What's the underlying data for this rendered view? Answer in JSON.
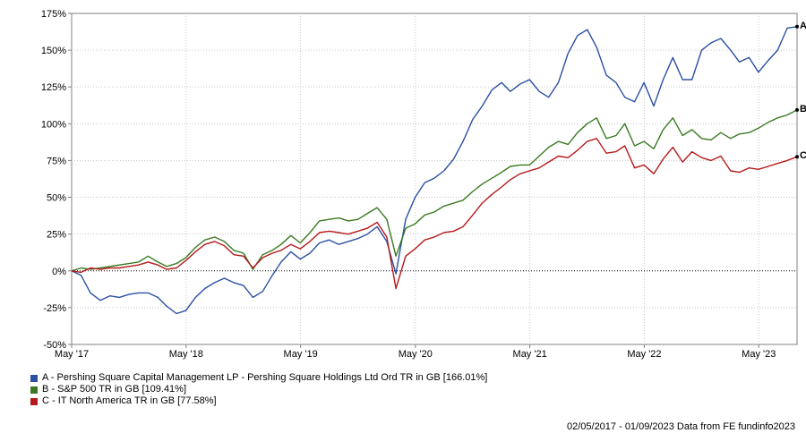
{
  "chart_data": {
    "type": "line",
    "x_tick_labels": [
      "May '17",
      "May '18",
      "May '19",
      "May '20",
      "May '21",
      "May '22",
      "May '23"
    ],
    "y_tick_labels": [
      "175%",
      "150%",
      "125%",
      "100%",
      "75%",
      "50%",
      "25%",
      "0%",
      "-25%",
      "-50%"
    ],
    "ylim": [
      -50,
      175
    ],
    "x_range": [
      "2017-05-02",
      "2023-09-01"
    ],
    "grid": true,
    "zero_line": true,
    "legend_position": "bottom-left",
    "series": [
      {
        "id": "A",
        "name": "A - Pershing Square Capital Management LP - Pershing Square Holdings Ltd Ord TR in GB [166.01%]",
        "color": "#2b4fa3",
        "points": [
          [
            "2017-05-02",
            0
          ],
          [
            "2017-06-01",
            -3
          ],
          [
            "2017-07-01",
            -15
          ],
          [
            "2017-08-01",
            -20
          ],
          [
            "2017-09-01",
            -17
          ],
          [
            "2017-10-01",
            -18
          ],
          [
            "2017-11-01",
            -16
          ],
          [
            "2017-12-01",
            -15
          ],
          [
            "2018-01-01",
            -15
          ],
          [
            "2018-02-01",
            -18
          ],
          [
            "2018-03-01",
            -24
          ],
          [
            "2018-04-01",
            -29
          ],
          [
            "2018-05-01",
            -27
          ],
          [
            "2018-06-01",
            -18
          ],
          [
            "2018-07-01",
            -12
          ],
          [
            "2018-08-01",
            -8
          ],
          [
            "2018-09-01",
            -5
          ],
          [
            "2018-10-01",
            -8
          ],
          [
            "2018-11-01",
            -10
          ],
          [
            "2018-12-01",
            -18
          ],
          [
            "2019-01-01",
            -14
          ],
          [
            "2019-02-01",
            -3
          ],
          [
            "2019-03-01",
            6
          ],
          [
            "2019-04-01",
            13
          ],
          [
            "2019-05-01",
            8
          ],
          [
            "2019-06-01",
            12
          ],
          [
            "2019-07-01",
            19
          ],
          [
            "2019-08-01",
            21
          ],
          [
            "2019-09-01",
            18
          ],
          [
            "2019-10-01",
            20
          ],
          [
            "2019-11-01",
            22
          ],
          [
            "2019-12-01",
            25
          ],
          [
            "2020-01-01",
            30
          ],
          [
            "2020-02-01",
            20
          ],
          [
            "2020-03-01",
            -2
          ],
          [
            "2020-03-15",
            15
          ],
          [
            "2020-04-01",
            35
          ],
          [
            "2020-05-01",
            50
          ],
          [
            "2020-06-01",
            60
          ],
          [
            "2020-07-01",
            63
          ],
          [
            "2020-08-01",
            68
          ],
          [
            "2020-09-01",
            76
          ],
          [
            "2020-10-01",
            88
          ],
          [
            "2020-11-01",
            103
          ],
          [
            "2020-12-01",
            112
          ],
          [
            "2021-01-01",
            123
          ],
          [
            "2021-02-01",
            128
          ],
          [
            "2021-03-01",
            122
          ],
          [
            "2021-04-01",
            127
          ],
          [
            "2021-05-01",
            130
          ],
          [
            "2021-06-01",
            122
          ],
          [
            "2021-07-01",
            118
          ],
          [
            "2021-08-01",
            128
          ],
          [
            "2021-09-01",
            148
          ],
          [
            "2021-10-01",
            160
          ],
          [
            "2021-11-01",
            164
          ],
          [
            "2021-12-01",
            152
          ],
          [
            "2022-01-01",
            133
          ],
          [
            "2022-02-01",
            128
          ],
          [
            "2022-03-01",
            118
          ],
          [
            "2022-04-01",
            115
          ],
          [
            "2022-05-01",
            128
          ],
          [
            "2022-06-01",
            112
          ],
          [
            "2022-07-01",
            130
          ],
          [
            "2022-08-01",
            145
          ],
          [
            "2022-09-01",
            130
          ],
          [
            "2022-10-01",
            130
          ],
          [
            "2022-11-01",
            150
          ],
          [
            "2022-12-01",
            155
          ],
          [
            "2023-01-01",
            158
          ],
          [
            "2023-02-01",
            150
          ],
          [
            "2023-03-01",
            142
          ],
          [
            "2023-04-01",
            145
          ],
          [
            "2023-05-01",
            135
          ],
          [
            "2023-06-01",
            143
          ],
          [
            "2023-07-01",
            150
          ],
          [
            "2023-08-01",
            165
          ],
          [
            "2023-09-01",
            166.01
          ]
        ]
      },
      {
        "id": "B",
        "name": "B - S&P 500 TR in GB [109.41%]",
        "color": "#3a7a22",
        "points": [
          [
            "2017-05-02",
            0
          ],
          [
            "2017-06-01",
            2
          ],
          [
            "2017-07-01",
            1
          ],
          [
            "2017-08-01",
            2
          ],
          [
            "2017-09-01",
            3
          ],
          [
            "2017-10-01",
            4
          ],
          [
            "2017-11-01",
            5
          ],
          [
            "2017-12-01",
            6
          ],
          [
            "2018-01-01",
            10
          ],
          [
            "2018-02-01",
            6
          ],
          [
            "2018-03-01",
            3
          ],
          [
            "2018-04-01",
            5
          ],
          [
            "2018-05-01",
            9
          ],
          [
            "2018-06-01",
            16
          ],
          [
            "2018-07-01",
            21
          ],
          [
            "2018-08-01",
            23
          ],
          [
            "2018-09-01",
            20
          ],
          [
            "2018-10-01",
            14
          ],
          [
            "2018-11-01",
            12
          ],
          [
            "2018-12-01",
            1
          ],
          [
            "2019-01-01",
            11
          ],
          [
            "2019-02-01",
            14
          ],
          [
            "2019-03-01",
            18
          ],
          [
            "2019-04-01",
            24
          ],
          [
            "2019-05-01",
            19
          ],
          [
            "2019-06-01",
            26
          ],
          [
            "2019-07-01",
            34
          ],
          [
            "2019-08-01",
            35
          ],
          [
            "2019-09-01",
            36
          ],
          [
            "2019-10-01",
            34
          ],
          [
            "2019-11-01",
            35
          ],
          [
            "2019-12-01",
            39
          ],
          [
            "2020-01-01",
            43
          ],
          [
            "2020-02-01",
            35
          ],
          [
            "2020-03-01",
            10
          ],
          [
            "2020-04-01",
            29
          ],
          [
            "2020-05-01",
            32
          ],
          [
            "2020-06-01",
            38
          ],
          [
            "2020-07-01",
            40
          ],
          [
            "2020-08-01",
            44
          ],
          [
            "2020-09-01",
            46
          ],
          [
            "2020-10-01",
            48
          ],
          [
            "2020-11-01",
            54
          ],
          [
            "2020-12-01",
            59
          ],
          [
            "2021-01-01",
            63
          ],
          [
            "2021-02-01",
            67
          ],
          [
            "2021-03-01",
            71
          ],
          [
            "2021-04-01",
            72
          ],
          [
            "2021-05-01",
            72
          ],
          [
            "2021-06-01",
            78
          ],
          [
            "2021-07-01",
            84
          ],
          [
            "2021-08-01",
            88
          ],
          [
            "2021-09-01",
            86
          ],
          [
            "2021-10-01",
            94
          ],
          [
            "2021-11-01",
            100
          ],
          [
            "2021-12-01",
            104
          ],
          [
            "2022-01-01",
            90
          ],
          [
            "2022-02-01",
            92
          ],
          [
            "2022-03-01",
            100
          ],
          [
            "2022-04-01",
            85
          ],
          [
            "2022-05-01",
            88
          ],
          [
            "2022-06-01",
            83
          ],
          [
            "2022-07-01",
            96
          ],
          [
            "2022-08-01",
            104
          ],
          [
            "2022-09-01",
            92
          ],
          [
            "2022-10-01",
            96
          ],
          [
            "2022-11-01",
            90
          ],
          [
            "2022-12-01",
            89
          ],
          [
            "2023-01-01",
            94
          ],
          [
            "2023-02-01",
            90
          ],
          [
            "2023-03-01",
            93
          ],
          [
            "2023-04-01",
            94
          ],
          [
            "2023-05-01",
            97
          ],
          [
            "2023-06-01",
            101
          ],
          [
            "2023-07-01",
            104
          ],
          [
            "2023-08-01",
            106
          ],
          [
            "2023-09-01",
            109.41
          ]
        ]
      },
      {
        "id": "C",
        "name": "C - IT North America TR in GB [77.58%]",
        "color": "#b5191c",
        "points": [
          [
            "2017-05-02",
            0
          ],
          [
            "2017-06-01",
            -1
          ],
          [
            "2017-07-01",
            2
          ],
          [
            "2017-08-01",
            1
          ],
          [
            "2017-09-01",
            2
          ],
          [
            "2017-10-01",
            2
          ],
          [
            "2017-11-01",
            3
          ],
          [
            "2017-12-01",
            4
          ],
          [
            "2018-01-01",
            6
          ],
          [
            "2018-02-01",
            4
          ],
          [
            "2018-03-01",
            1
          ],
          [
            "2018-04-01",
            2
          ],
          [
            "2018-05-01",
            7
          ],
          [
            "2018-06-01",
            13
          ],
          [
            "2018-07-01",
            18
          ],
          [
            "2018-08-01",
            20
          ],
          [
            "2018-09-01",
            17
          ],
          [
            "2018-10-01",
            11
          ],
          [
            "2018-11-01",
            10
          ],
          [
            "2018-12-01",
            2
          ],
          [
            "2019-01-01",
            9
          ],
          [
            "2019-02-01",
            12
          ],
          [
            "2019-03-01",
            14
          ],
          [
            "2019-04-01",
            18
          ],
          [
            "2019-05-01",
            15
          ],
          [
            "2019-06-01",
            20
          ],
          [
            "2019-07-01",
            26
          ],
          [
            "2019-08-01",
            27
          ],
          [
            "2019-09-01",
            26
          ],
          [
            "2019-10-01",
            25
          ],
          [
            "2019-11-01",
            27
          ],
          [
            "2019-12-01",
            29
          ],
          [
            "2020-01-01",
            33
          ],
          [
            "2020-02-01",
            23
          ],
          [
            "2020-03-01",
            -12
          ],
          [
            "2020-04-01",
            10
          ],
          [
            "2020-05-01",
            15
          ],
          [
            "2020-06-01",
            21
          ],
          [
            "2020-07-01",
            23
          ],
          [
            "2020-08-01",
            26
          ],
          [
            "2020-09-01",
            27
          ],
          [
            "2020-10-01",
            30
          ],
          [
            "2020-11-01",
            38
          ],
          [
            "2020-12-01",
            46
          ],
          [
            "2021-01-01",
            52
          ],
          [
            "2021-02-01",
            57
          ],
          [
            "2021-03-01",
            62
          ],
          [
            "2021-04-01",
            66
          ],
          [
            "2021-05-01",
            68
          ],
          [
            "2021-06-01",
            70
          ],
          [
            "2021-07-01",
            74
          ],
          [
            "2021-08-01",
            78
          ],
          [
            "2021-09-01",
            77
          ],
          [
            "2021-10-01",
            82
          ],
          [
            "2021-11-01",
            88
          ],
          [
            "2021-12-01",
            90
          ],
          [
            "2022-01-01",
            80
          ],
          [
            "2022-02-01",
            81
          ],
          [
            "2022-03-01",
            85
          ],
          [
            "2022-04-01",
            70
          ],
          [
            "2022-05-01",
            72
          ],
          [
            "2022-06-01",
            66
          ],
          [
            "2022-07-01",
            76
          ],
          [
            "2022-08-01",
            84
          ],
          [
            "2022-09-01",
            74
          ],
          [
            "2022-10-01",
            81
          ],
          [
            "2022-11-01",
            77
          ],
          [
            "2022-12-01",
            75
          ],
          [
            "2023-01-01",
            78
          ],
          [
            "2023-02-01",
            68
          ],
          [
            "2023-03-01",
            67
          ],
          [
            "2023-04-01",
            70
          ],
          [
            "2023-05-01",
            69
          ],
          [
            "2023-06-01",
            71
          ],
          [
            "2023-07-01",
            73
          ],
          [
            "2023-08-01",
            75
          ],
          [
            "2023-09-01",
            77.58
          ]
        ]
      }
    ]
  },
  "legend": {
    "items": [
      {
        "label": "A - Pershing Square Capital Management LP - Pershing Square Holdings Ltd Ord TR in GB [166.01%]",
        "color": "#2b4fa3"
      },
      {
        "label": "B - S&P 500 TR in GB [109.41%]",
        "color": "#3a7a22"
      },
      {
        "label": "C - IT North America TR in GB [77.58%]",
        "color": "#b5191c"
      }
    ]
  },
  "footer": {
    "text": "02/05/2017 - 01/09/2023 Data from FE fundinfo2023"
  }
}
